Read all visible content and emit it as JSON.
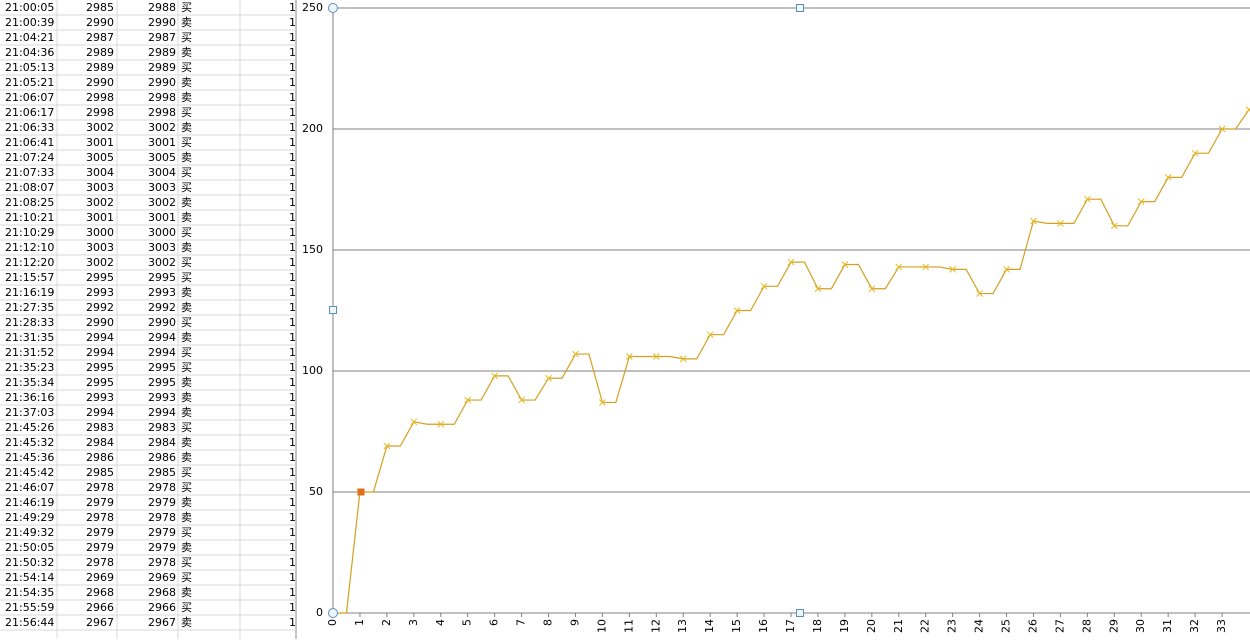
{
  "sheet": {
    "rows": [
      [
        "21:00:05",
        2985,
        2988,
        "买",
        1
      ],
      [
        "21:00:39",
        2990,
        2990,
        "卖",
        1
      ],
      [
        "21:04:21",
        2987,
        2987,
        "买",
        1
      ],
      [
        "21:04:36",
        2989,
        2989,
        "卖",
        1
      ],
      [
        "21:05:13",
        2989,
        2989,
        "买",
        1
      ],
      [
        "21:05:21",
        2990,
        2990,
        "卖",
        1
      ],
      [
        "21:06:07",
        2998,
        2998,
        "卖",
        1
      ],
      [
        "21:06:17",
        2998,
        2998,
        "买",
        1
      ],
      [
        "21:06:33",
        3002,
        3002,
        "卖",
        1
      ],
      [
        "21:06:41",
        3001,
        3001,
        "买",
        1
      ],
      [
        "21:07:24",
        3005,
        3005,
        "卖",
        1
      ],
      [
        "21:07:33",
        3004,
        3004,
        "买",
        1
      ],
      [
        "21:08:07",
        3003,
        3003,
        "买",
        1
      ],
      [
        "21:08:25",
        3002,
        3002,
        "卖",
        1
      ],
      [
        "21:10:21",
        3001,
        3001,
        "卖",
        1
      ],
      [
        "21:10:29",
        3000,
        3000,
        "买",
        1
      ],
      [
        "21:12:10",
        3003,
        3003,
        "卖",
        1
      ],
      [
        "21:12:20",
        3002,
        3002,
        "买",
        1
      ],
      [
        "21:15:57",
        2995,
        2995,
        "买",
        1
      ],
      [
        "21:16:19",
        2993,
        2993,
        "卖",
        1
      ],
      [
        "21:27:35",
        2992,
        2992,
        "卖",
        1
      ],
      [
        "21:28:33",
        2990,
        2990,
        "买",
        1
      ],
      [
        "21:31:35",
        2994,
        2994,
        "卖",
        1
      ],
      [
        "21:31:52",
        2994,
        2994,
        "买",
        1
      ],
      [
        "21:35:23",
        2995,
        2995,
        "买",
        1
      ],
      [
        "21:35:34",
        2995,
        2995,
        "卖",
        1
      ],
      [
        "21:36:16",
        2993,
        2993,
        "卖",
        1
      ],
      [
        "21:37:03",
        2994,
        2994,
        "卖",
        1
      ],
      [
        "21:45:26",
        2983,
        2983,
        "买",
        1
      ],
      [
        "21:45:32",
        2984,
        2984,
        "卖",
        1
      ],
      [
        "21:45:36",
        2986,
        2986,
        "卖",
        1
      ],
      [
        "21:45:42",
        2985,
        2985,
        "买",
        1
      ],
      [
        "21:46:07",
        2978,
        2978,
        "买",
        1
      ],
      [
        "21:46:19",
        2979,
        2979,
        "卖",
        1
      ],
      [
        "21:49:29",
        2978,
        2978,
        "卖",
        1
      ],
      [
        "21:49:32",
        2979,
        2979,
        "买",
        1
      ],
      [
        "21:50:05",
        2979,
        2979,
        "卖",
        1
      ],
      [
        "21:50:32",
        2978,
        2978,
        "买",
        1
      ],
      [
        "21:54:14",
        2969,
        2969,
        "买",
        1
      ],
      [
        "21:54:35",
        2968,
        2968,
        "卖",
        1
      ],
      [
        "21:55:59",
        2966,
        2966,
        "买",
        1
      ],
      [
        "21:56:44",
        2967,
        2967,
        "卖",
        1
      ]
    ]
  },
  "chart_data": {
    "type": "line",
    "color": "#d4a020",
    "grid": true,
    "xlim": [
      0,
      34
    ],
    "xticks": [
      0,
      1,
      2,
      3,
      4,
      5,
      6,
      7,
      8,
      9,
      10,
      11,
      12,
      13,
      14,
      15,
      16,
      17,
      18,
      19,
      20,
      21,
      22,
      23,
      24,
      25,
      26,
      27,
      28,
      29,
      30,
      31,
      32,
      33
    ],
    "ylim": [
      0,
      250
    ],
    "yticks": [
      0,
      50,
      100,
      150,
      200,
      250
    ],
    "x": [
      0,
      0.5,
      1,
      1.5,
      2,
      2.5,
      3,
      3.5,
      4,
      4.5,
      5,
      5.5,
      6,
      6.5,
      7,
      7.5,
      8,
      8.5,
      9,
      9.5,
      10,
      10.5,
      11,
      11.5,
      12,
      12.5,
      13,
      13.5,
      14,
      14.5,
      15,
      15.5,
      16,
      16.5,
      17,
      17.5,
      18,
      18.5,
      19,
      19.5,
      20,
      20.5,
      21,
      21.5,
      22,
      22.5,
      23,
      23.5,
      24,
      24.5,
      25,
      25.5,
      26,
      26.5,
      27,
      27.5,
      28,
      28.5,
      29,
      29.5,
      30,
      30.5,
      31,
      31.5,
      32,
      32.5,
      33,
      33.5,
      34
    ],
    "values": [
      0,
      0,
      50,
      50,
      69,
      69,
      79,
      78,
      78,
      78,
      88,
      88,
      98,
      98,
      88,
      88,
      97,
      97,
      107,
      107,
      87,
      87,
      106,
      106,
      106,
      106,
      105,
      105,
      115,
      115,
      125,
      125,
      135,
      135,
      145,
      145,
      134,
      134,
      144,
      144,
      134,
      134,
      143,
      143,
      143,
      143,
      142,
      142,
      132,
      132,
      142,
      142,
      162,
      161,
      161,
      161,
      171,
      171,
      160,
      160,
      170,
      170,
      180,
      180,
      190,
      190,
      200,
      200,
      208
    ]
  }
}
